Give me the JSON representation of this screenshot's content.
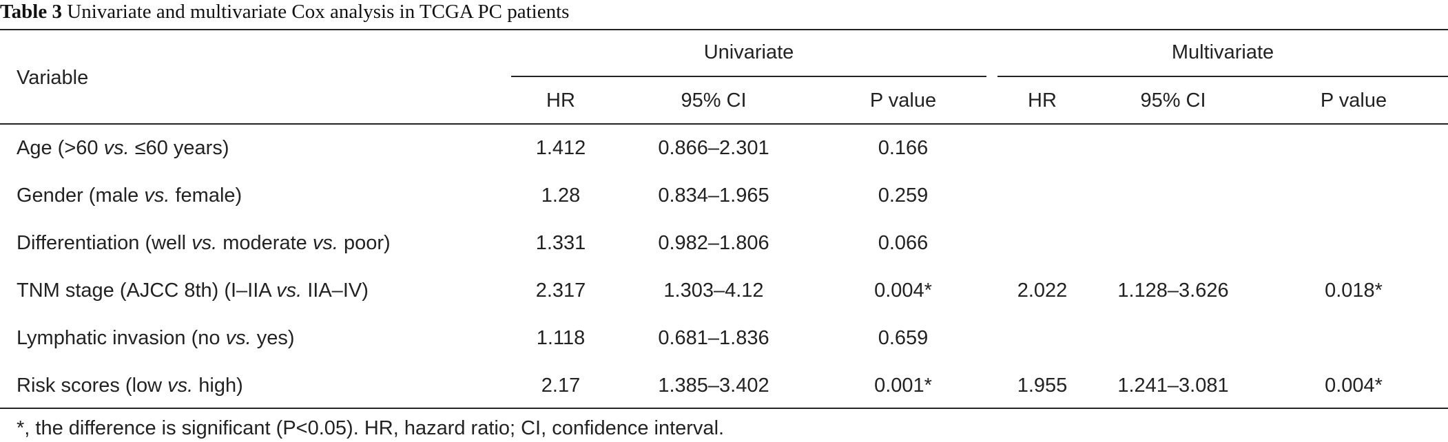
{
  "caption": {
    "label": "Table 3",
    "text": "Univariate and multivariate Cox analysis in TCGA PC patients"
  },
  "headers": {
    "variable": "Variable",
    "group_univariate": "Univariate",
    "group_multivariate": "Multivariate",
    "hr": "HR",
    "ci": "95% CI",
    "p": "P value"
  },
  "rows": [
    {
      "variable": [
        "Age (>60 ",
        "vs.",
        " ≤60 years)"
      ],
      "uni": [
        "1.412",
        "0.866–2.301",
        "0.166"
      ],
      "multi": [
        "",
        "",
        ""
      ]
    },
    {
      "variable": [
        "Gender (male ",
        "vs.",
        " female)"
      ],
      "uni": [
        "1.28",
        "0.834–1.965",
        "0.259"
      ],
      "multi": [
        "",
        "",
        ""
      ]
    },
    {
      "variable": [
        "Differentiation (well ",
        "vs.",
        " moderate ",
        "vs.",
        " poor)"
      ],
      "uni": [
        "1.331",
        "0.982–1.806",
        "0.066"
      ],
      "multi": [
        "",
        "",
        ""
      ]
    },
    {
      "variable": [
        "TNM stage (AJCC 8th) (I–IIA ",
        "vs.",
        " IIA–IV)"
      ],
      "uni": [
        "2.317",
        "1.303–4.12",
        "0.004*"
      ],
      "multi": [
        "2.022",
        "1.128–3.626",
        "0.018*"
      ]
    },
    {
      "variable": [
        "Lymphatic invasion (no ",
        "vs.",
        " yes)"
      ],
      "uni": [
        "1.118",
        "0.681–1.836",
        "0.659"
      ],
      "multi": [
        "",
        "",
        ""
      ]
    },
    {
      "variable": [
        "Risk scores (low ",
        "vs.",
        " high)"
      ],
      "uni": [
        "2.17",
        "1.385–3.402",
        "0.001*"
      ],
      "multi": [
        "1.955",
        "1.241–3.081",
        "0.004*"
      ]
    }
  ],
  "footnote": "*, the difference is significant (P<0.05). HR, hazard ratio; CI, confidence interval."
}
